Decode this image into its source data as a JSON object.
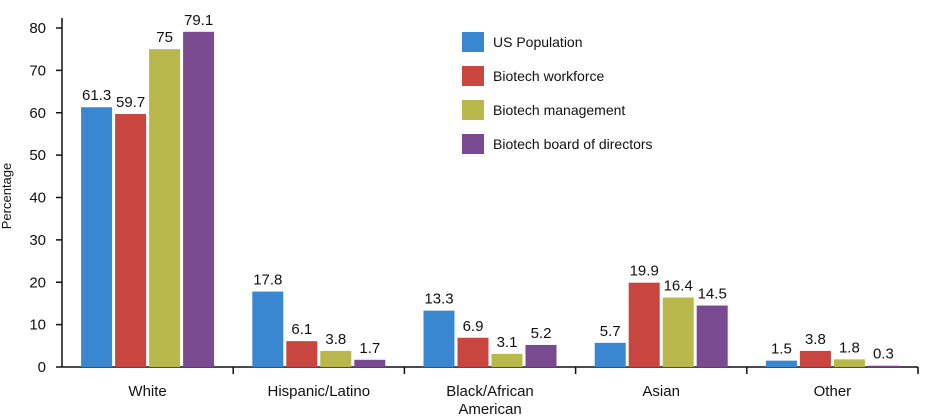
{
  "chart_data": {
    "type": "bar",
    "title": "",
    "xlabel": "",
    "ylabel": "Percentage",
    "ylim": [
      0,
      80
    ],
    "yticks": [
      0,
      10,
      20,
      30,
      40,
      50,
      60,
      70,
      80
    ],
    "categories": [
      "White",
      "Hispanic/Latino",
      "Black/African American",
      "Asian",
      "Other"
    ],
    "category_label_lines": [
      [
        "White"
      ],
      [
        "Hispanic/Latino"
      ],
      [
        "Black/African",
        "American"
      ],
      [
        "Asian"
      ],
      [
        "Other"
      ]
    ],
    "series": [
      {
        "name": "US Population",
        "color": "#3a87d1",
        "values": [
          61.3,
          17.8,
          13.3,
          5.7,
          1.5
        ],
        "labels": [
          "61.3",
          "17.8",
          "13.3",
          "5.7",
          "1.5"
        ]
      },
      {
        "name": "Biotech workforce",
        "color": "#c8463f",
        "values": [
          59.7,
          6.1,
          6.9,
          19.9,
          3.8
        ],
        "labels": [
          "59.7",
          "6.1",
          "6.9",
          "19.9",
          "3.8"
        ]
      },
      {
        "name": "Biotech management",
        "color": "#b8b84c",
        "values": [
          75,
          3.8,
          3.1,
          16.4,
          1.8
        ],
        "labels": [
          "75",
          "3.8",
          "3.1",
          "16.4",
          "1.8"
        ]
      },
      {
        "name": "Biotech board of directors",
        "color": "#7a4a90",
        "values": [
          79.1,
          1.7,
          5.2,
          14.5,
          0.3
        ],
        "labels": [
          "79.1",
          "1.7",
          "5.2",
          "14.5",
          "0.3"
        ]
      }
    ],
    "legend_position": "top-right",
    "grid": false
  }
}
